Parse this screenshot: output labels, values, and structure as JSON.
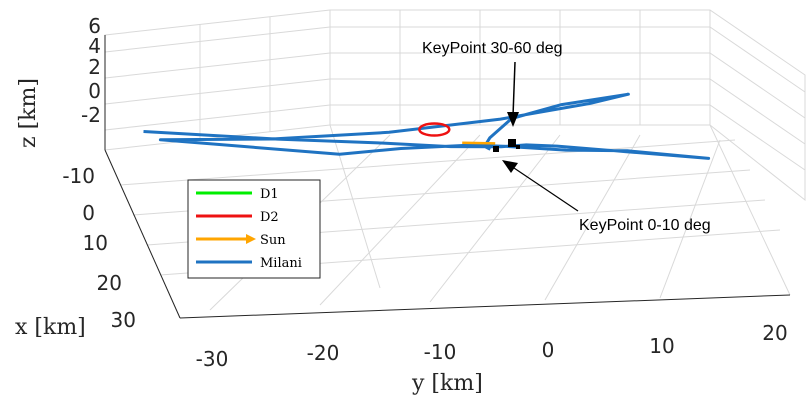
{
  "chart_data": {
    "type": "line",
    "title": "",
    "xlabel": "x [km]",
    "ylabel": "y [km]",
    "zlabel": "z [km]",
    "x_ticks": [
      "-10",
      "0",
      "10",
      "20",
      "30"
    ],
    "y_ticks": [
      "-30",
      "-20",
      "-10",
      "0",
      "10",
      "20"
    ],
    "z_ticks": [
      "6",
      "4",
      "2",
      "0",
      "-2"
    ],
    "xlim": [
      -15,
      30
    ],
    "ylim": [
      -35,
      20
    ],
    "zlim": [
      -4,
      6
    ],
    "grid": true,
    "legend_placement": "left-middle",
    "legend": [
      {
        "name": "D1",
        "color": "#00ee00"
      },
      {
        "name": "D2",
        "color": "#ee1111"
      },
      {
        "name": "Sun",
        "color": "#ffa500"
      },
      {
        "name": "Milani",
        "color": "#1f73c2"
      }
    ],
    "annotations": [
      {
        "text": "KeyPoint 30-60 deg"
      },
      {
        "text": "KeyPoint 0-10 deg"
      }
    ],
    "series": [
      {
        "name": "Milani",
        "color": "#1f73c2",
        "points": [
          [
            -5,
            -30,
            1.5
          ],
          [
            -1,
            -20,
            0.2
          ],
          [
            1,
            -12,
            -0.3
          ],
          [
            2,
            -6,
            -0.6
          ],
          [
            3,
            -2,
            -0.7
          ],
          [
            3.5,
            0,
            -0.6
          ],
          [
            3,
            3,
            -0.4
          ],
          [
            2,
            8,
            -0.2
          ],
          [
            0,
            18,
            0.2
          ],
          [
            1.5,
            10,
            0
          ],
          [
            0.5,
            5,
            0.1
          ],
          [
            0,
            0,
            0.3
          ],
          [
            -0.5,
            -3,
            0.4
          ],
          [
            -3,
            -8,
            0.6
          ],
          [
            -6,
            -12,
            0.8
          ],
          [
            -6,
            -28,
            1.2
          ],
          [
            -2,
            -20,
            0.5
          ],
          [
            3,
            -12,
            0
          ],
          [
            9,
            -5,
            -0.3
          ],
          [
            15,
            0,
            -0.5
          ],
          [
            18,
            2,
            -0.5
          ],
          [
            14,
            -2,
            -0.4
          ],
          [
            9,
            -4,
            -0.2
          ],
          [
            3,
            -3,
            0
          ],
          [
            0,
            -2,
            0.2
          ],
          [
            -1,
            -1,
            0.3
          ]
        ]
      },
      {
        "name": "Sun",
        "color": "#ffa500",
        "points": [
          [
            0,
            -4,
            0.4
          ],
          [
            6,
            -4,
            -1.4
          ]
        ]
      },
      {
        "name": "D2",
        "color": "#ee1111",
        "points": [
          [
            -1,
            -6,
            1.7
          ]
        ]
      }
    ]
  }
}
